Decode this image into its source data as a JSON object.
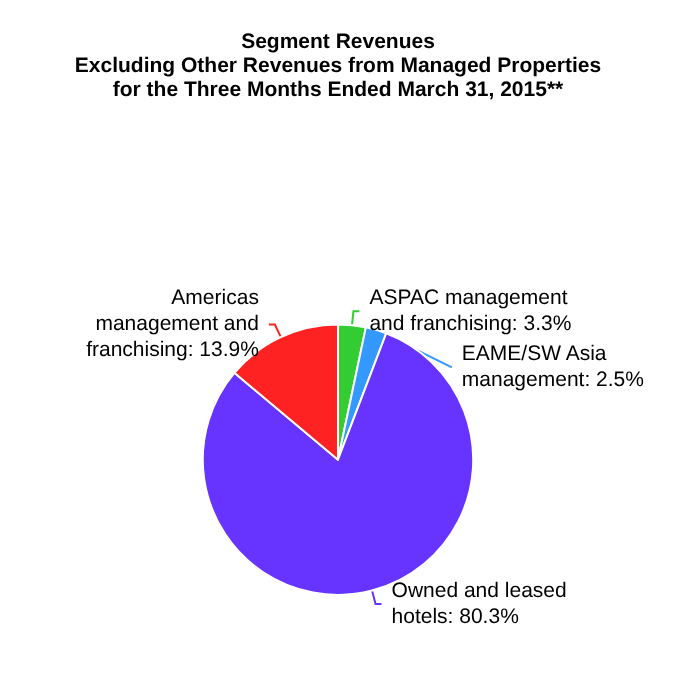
{
  "chart_data": {
    "type": "pie",
    "title": "Segment Revenues\nExcluding Other Revenues from Managed Properties\nfor the Three Months Ended March 31, 2015**",
    "categories": [
      "ASPAC management and franchising",
      "EAME/SW Asia management",
      "Owned and leased hotels",
      "Americas management and franchising"
    ],
    "values": [
      3.3,
      2.5,
      80.3,
      13.9
    ],
    "value_labels": [
      ": 3.3%",
      ": 2.5%",
      ": 80.3%",
      ": 13.9%"
    ],
    "colors": [
      "#33cc33",
      "#3399ff",
      "#6633ff",
      "#ff2222"
    ],
    "legend": false
  }
}
